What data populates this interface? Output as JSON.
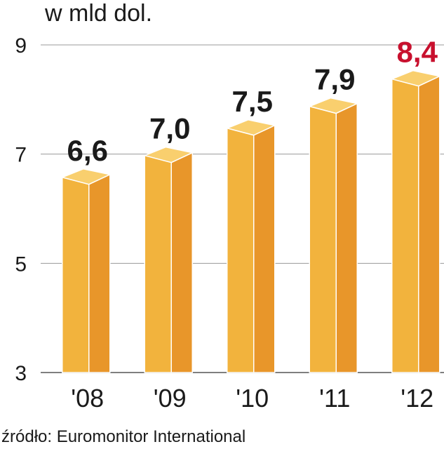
{
  "chart_data": {
    "type": "bar",
    "unit_label": "w mld dol.",
    "categories": [
      "'08",
      "'09",
      "'10",
      "'11",
      "'12"
    ],
    "values": [
      6.6,
      7.0,
      7.5,
      7.9,
      8.4
    ],
    "value_labels": [
      "6,6",
      "7,0",
      "7,5",
      "7,9",
      "8,4"
    ],
    "y_ticks": [
      "3",
      "5",
      "7",
      "9"
    ],
    "ylim": [
      3,
      9
    ],
    "grid": true,
    "source": "źródło: Euromonitor International",
    "colors": {
      "bar_front": "#F2B33D",
      "bar_side": "#E8962A",
      "bar_top": "#F9CF6E",
      "highlight_label": "#C8102E",
      "label": "#1a1a1a",
      "grid": "#9a9a9a"
    }
  }
}
